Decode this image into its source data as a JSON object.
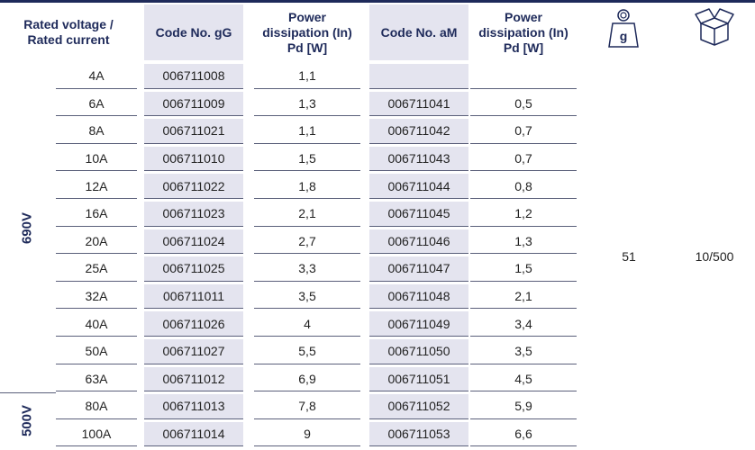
{
  "table": {
    "header": [
      "Rated voltage / Rated current",
      "Code No. gG",
      "Power dissipation (In) Pd [W]",
      "Code No. aM",
      "Power dissipation (In) Pd [W]"
    ],
    "weight_icon_label": "g",
    "voltage_groups": [
      {
        "label": "690V",
        "rows": 12
      },
      {
        "label": "500V",
        "rows": 2
      }
    ],
    "weight": "51",
    "package": "10/500",
    "rows": [
      [
        "4A",
        "006711008",
        "1,1",
        null,
        null
      ],
      [
        "6A",
        "006711009",
        "1,3",
        "006711041",
        "0,5"
      ],
      [
        "8A",
        "006711021",
        "1,1",
        "006711042",
        "0,7"
      ],
      [
        "10A",
        "006711010",
        "1,5",
        "006711043",
        "0,7"
      ],
      [
        "12A",
        "006711022",
        "1,8",
        "006711044",
        "0,8"
      ],
      [
        "16A",
        "006711023",
        "2,1",
        "006711045",
        "1,2"
      ],
      [
        "20A",
        "006711024",
        "2,7",
        "006711046",
        "1,3"
      ],
      [
        "25A",
        "006711025",
        "3,3",
        "006711047",
        "1,5"
      ],
      [
        "32A",
        "006711011",
        "3,5",
        "006711048",
        "2,1"
      ],
      [
        "40A",
        "006711026",
        "4",
        "006711049",
        "3,4"
      ],
      [
        "50A",
        "006711027",
        "5,5",
        "006711050",
        "3,5"
      ],
      [
        "63A",
        "006711012",
        "6,9",
        "006711051",
        "4,5"
      ],
      [
        "80A",
        "006711013",
        "7,8",
        "006711052",
        "5,9"
      ],
      [
        "100A",
        "006711014",
        "9",
        "006711053",
        "6,6"
      ]
    ]
  }
}
